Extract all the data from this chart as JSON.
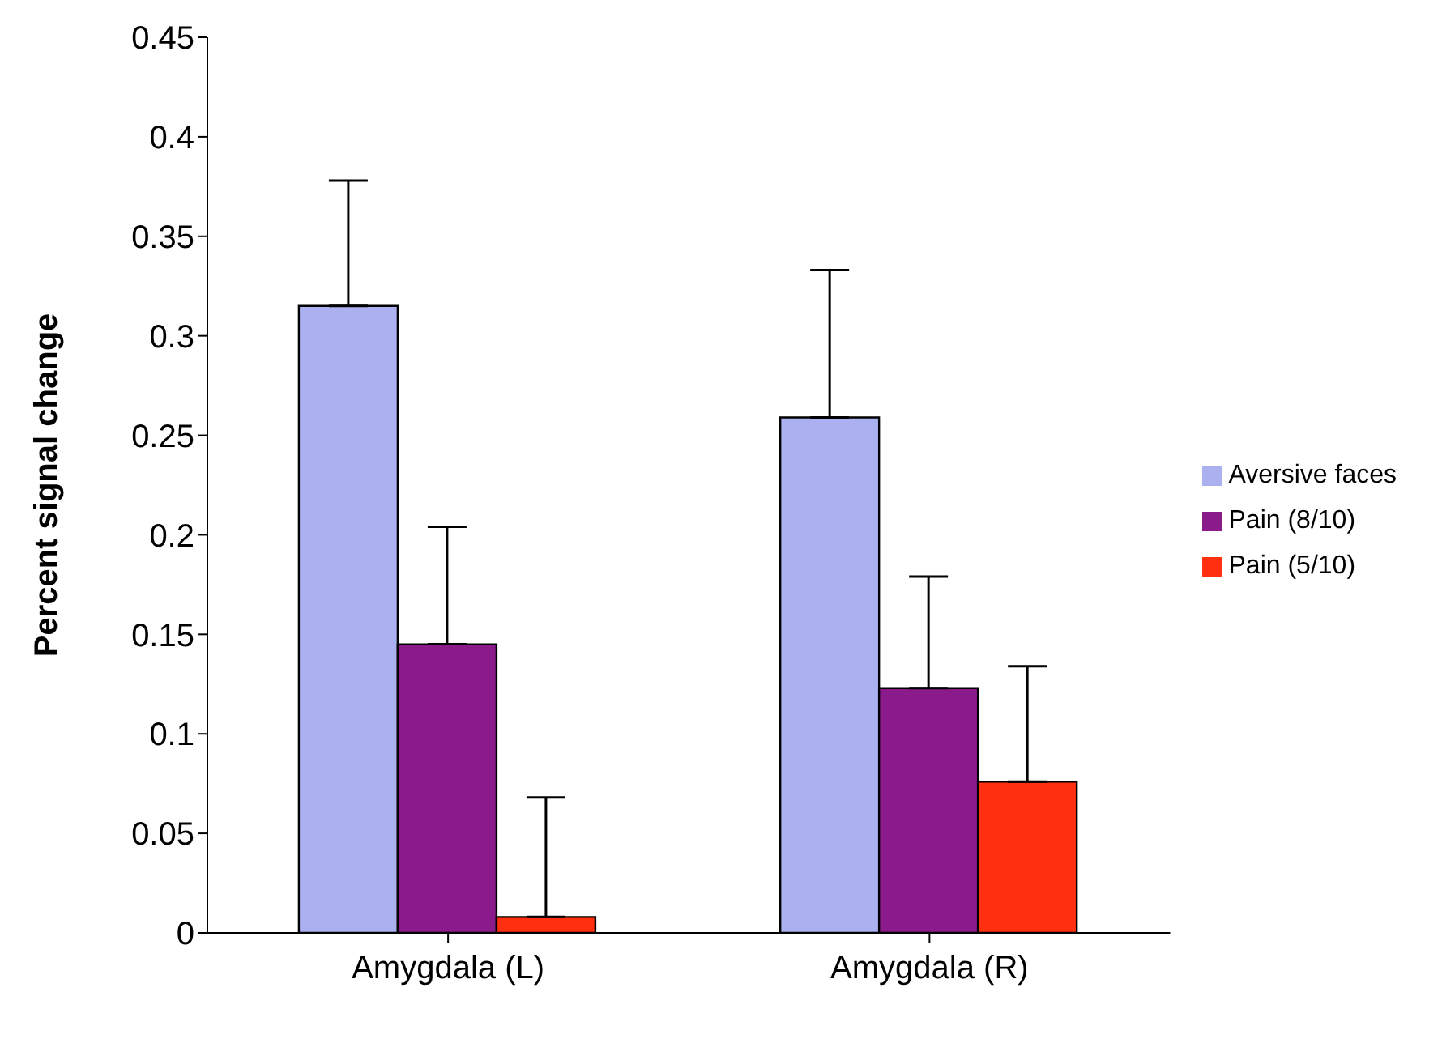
{
  "chart_data": {
    "type": "bar",
    "ylabel": "Percent signal change",
    "categories": [
      "Amygdala (L)",
      "Amygdala (R)"
    ],
    "series": [
      {
        "name": "Aversive faces",
        "color": "#aab0f0",
        "values": [
          0.315,
          0.259
        ],
        "errors": [
          [
            0.315,
            0.378
          ],
          [
            0.259,
            0.333
          ]
        ]
      },
      {
        "name": "Pain (8/10)",
        "color": "#8b1a8b",
        "values": [
          0.145,
          0.123
        ],
        "errors": [
          [
            0.145,
            0.204
          ],
          [
            0.123,
            0.179
          ]
        ]
      },
      {
        "name": "Pain (5/10)",
        "color": "#ff3010",
        "values": [
          0.008,
          0.076
        ],
        "errors": [
          [
            0.008,
            0.068
          ],
          [
            0.076,
            0.134
          ]
        ]
      }
    ],
    "ylim": [
      0,
      0.45
    ],
    "yticks": [
      0,
      0.05,
      0.1,
      0.15,
      0.2,
      0.25,
      0.3,
      0.35,
      0.4,
      0.45
    ],
    "grid": false,
    "legend": "right"
  }
}
